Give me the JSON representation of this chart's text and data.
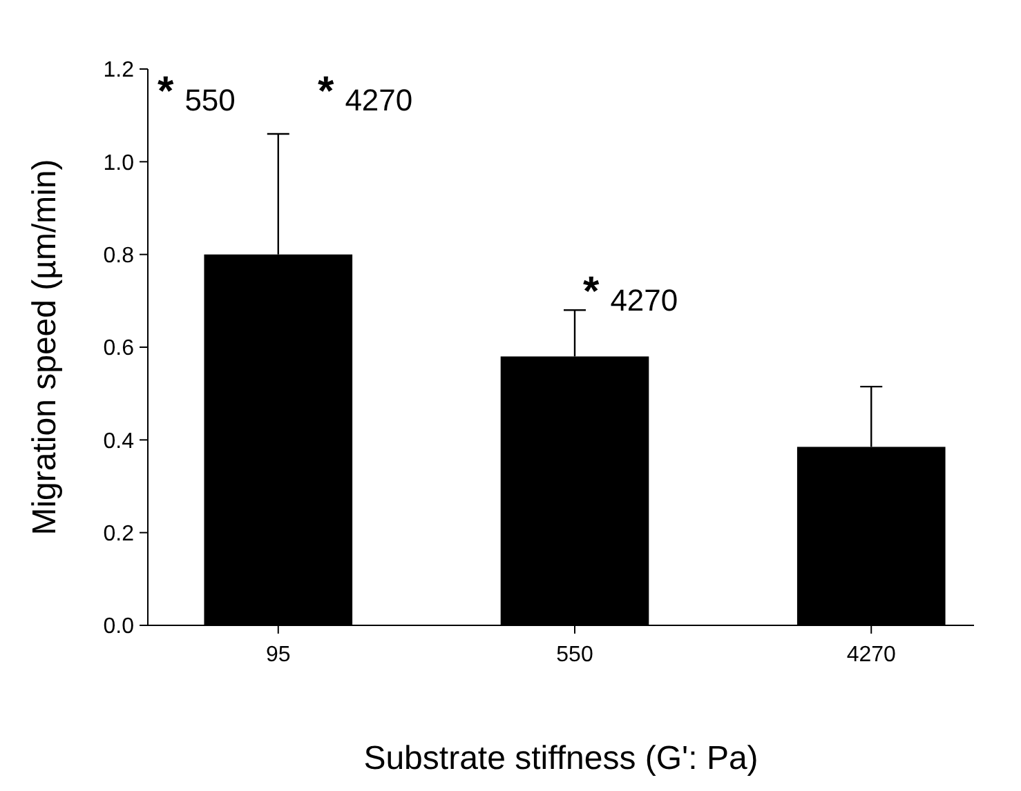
{
  "chart_data": {
    "type": "bar",
    "xlabel": "Substrate stiffness (G': Pa)",
    "ylabel": "Migration speed (µm/min)",
    "categories": [
      "95",
      "550",
      "4270"
    ],
    "values": [
      0.8,
      0.58,
      0.385
    ],
    "color": "#000000",
    "errors": [
      [
        0.8,
        1.06
      ],
      [
        0.58,
        0.68
      ],
      [
        0.385,
        0.515
      ]
    ],
    "ylim": [
      0,
      1.2
    ],
    "yticks": [
      {
        "value": 0,
        "label": "0.0"
      },
      {
        "value": 0.2,
        "label": "0.2"
      },
      {
        "value": 0.4,
        "label": "0.4"
      },
      {
        "value": 0.6,
        "label": "0.6"
      },
      {
        "value": 0.8,
        "label": "0.8"
      },
      {
        "value": 1.0,
        "label": "1.0"
      },
      {
        "value": 1.2,
        "label": "1.2"
      }
    ],
    "annotations": [
      "* 550",
      "* 4270",
      "* 4270"
    ]
  }
}
